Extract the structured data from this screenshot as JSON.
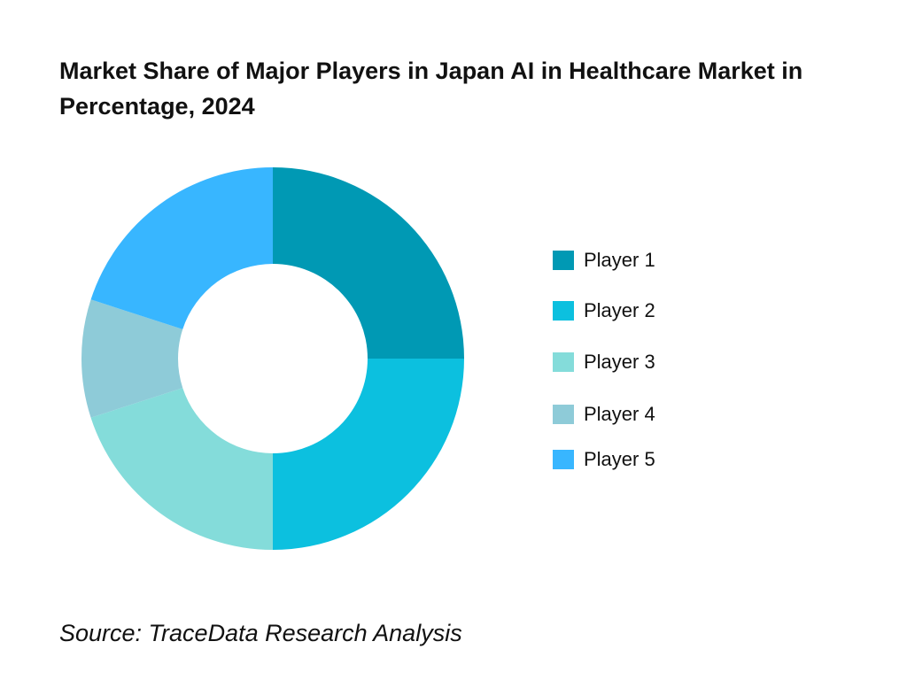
{
  "chart_data": {
    "type": "pie",
    "donut": true,
    "title": "Market Share of Major Players in Japan AI in Healthcare Market in Percentage, 2024",
    "categories": [
      "Player 1",
      "Player 2",
      "Player 3",
      "Player 4",
      "Player 5"
    ],
    "values": [
      25,
      25,
      20,
      10,
      20
    ],
    "colors": [
      "#0099b4",
      "#0cc0df",
      "#84dcda",
      "#8ecbd8",
      "#38b6ff"
    ],
    "legend_position": "right",
    "source": "Source: TraceData Research Analysis"
  }
}
